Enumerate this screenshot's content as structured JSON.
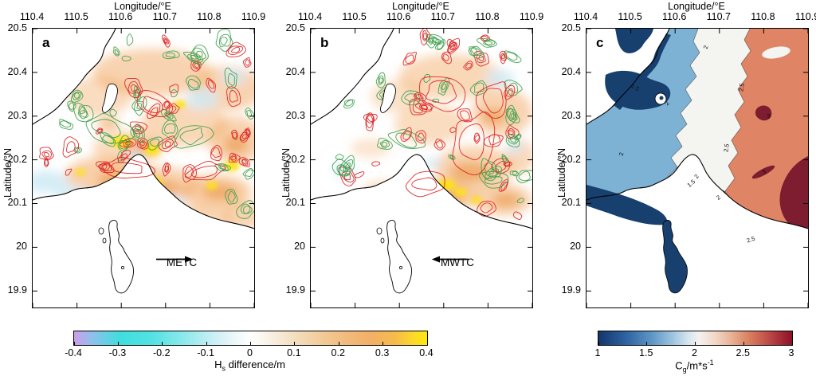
{
  "figure": {
    "panels": [
      {
        "letter": "a",
        "xlabel": "Longitude/°E",
        "ylabel": "Latitude/°N",
        "annotation": "METC",
        "arrow_direction": "right"
      },
      {
        "letter": "b",
        "xlabel": "Longitude/°E",
        "ylabel": "Latitude/°N",
        "annotation": "MWTC",
        "arrow_direction": "left"
      },
      {
        "letter": "c",
        "xlabel": "Longitude/°E",
        "ylabel": "Latitude/°N",
        "annotation": "",
        "arrow_direction": ""
      }
    ],
    "lon_ticks": [
      "110.4",
      "110.5",
      "110.6",
      "110.7",
      "110.8",
      "110.9"
    ],
    "lat_ticks": [
      "20.5",
      "20.4",
      "20.3",
      "20.2",
      "20.1",
      "20",
      "19.9"
    ],
    "colorbar_hs": {
      "label_pre": "H",
      "label_sub": "s",
      "label_post": " difference/m",
      "ticks": [
        "-0.4",
        "-0.3",
        "-0.2",
        "-0.1",
        "0",
        "0.1",
        "0.2",
        "0.3",
        "0.4"
      ]
    },
    "colorbar_cg": {
      "label_pre": "C",
      "label_sub": "g",
      "label_post": "/m*s",
      "label_sup": "-1",
      "ticks": [
        "1",
        "1.5",
        "2",
        "2.5",
        "3"
      ]
    },
    "c_contour_labels": [
      "2",
      "1.5",
      "2",
      "2.5",
      "3",
      "2",
      "2.5",
      "3",
      "2.5",
      "2",
      "1.5",
      "2"
    ]
  },
  "colors": {
    "contour_green": "#3ca04c",
    "contour_red": "#dd2222",
    "wash_orange": "#f2a862",
    "wash_deep_orange": "#ea8f3c",
    "wash_yellow": "#ffe30f",
    "wash_blue": "#cfeaf4",
    "c_navy": "#17406f",
    "c_blue": "#7db2d4",
    "c_white": "#f4f4f1",
    "c_salmon": "#df8465",
    "c_maroon": "#7e1c30",
    "coast": "#000000"
  },
  "chart_data": [
    {
      "type": "heatmap",
      "panel": "a",
      "title": "a",
      "xlabel": "Longitude/°E",
      "ylabel": "Latitude/°N",
      "xlim": [
        110.4,
        110.9
      ],
      "ylim": [
        19.9,
        20.5
      ],
      "x_ticks": [
        110.4,
        110.5,
        110.6,
        110.7,
        110.8,
        110.9
      ],
      "y_ticks": [
        20.5,
        20.4,
        20.3,
        20.2,
        20.1,
        20.0,
        19.9
      ],
      "variable": "Hs difference/m",
      "colorbar": {
        "range": [
          -0.4,
          0.4
        ],
        "ticks": [
          -0.4,
          -0.3,
          -0.2,
          -0.1,
          0,
          0.1,
          0.2,
          0.3,
          0.4
        ],
        "colormap": "purple-cyan-white-orange-yellow"
      },
      "annotation": "METC with two rightward (eastward) arrows",
      "overlay": "dense red and green contour patches over the sea; positive Hs difference (orange/yellow, up to ~0.4 m) concentrated around 20.2-20.35N, weak negative (light blue ~-0.1 m) near the west coast; black coastline with blank land"
    },
    {
      "type": "heatmap",
      "panel": "b",
      "title": "b",
      "xlabel": "Longitude/°E",
      "ylabel": "Latitude/°N",
      "xlim": [
        110.4,
        110.9
      ],
      "ylim": [
        19.9,
        20.5
      ],
      "x_ticks": [
        110.4,
        110.5,
        110.6,
        110.7,
        110.8,
        110.9
      ],
      "y_ticks": [
        20.5,
        20.4,
        20.3,
        20.2,
        20.1,
        20.0,
        19.9
      ],
      "variable": "Hs difference/m",
      "colorbar": {
        "range": [
          -0.4,
          0.4
        ],
        "ticks": [
          -0.4,
          -0.3,
          -0.2,
          -0.1,
          0,
          0.1,
          0.2,
          0.3,
          0.4
        ],
        "colormap": "purple-cyan-white-orange-yellow"
      },
      "annotation": "MWTC with two leftward (westward) arrows",
      "overlay": "red and green contour patches; weaker orange fill than panel a with a yellow hotspot near 110.7E 20.15N"
    },
    {
      "type": "filled-contour-map",
      "panel": "c",
      "title": "c",
      "xlabel": "Longitude/°E",
      "ylabel": "Latitude/°N",
      "xlim": [
        110.4,
        110.9
      ],
      "ylim": [
        19.9,
        20.5
      ],
      "x_ticks": [
        110.4,
        110.5,
        110.6,
        110.7,
        110.8,
        110.9
      ],
      "y_ticks": [
        20.5,
        20.4,
        20.3,
        20.2,
        20.1,
        20.0,
        19.9
      ],
      "variable": "Cg/m*s-1",
      "colorbar": {
        "range": [
          1,
          3
        ],
        "ticks": [
          1,
          1.5,
          2,
          2.5,
          3
        ],
        "colormap": "blue-white-red"
      },
      "contour_labels": [
        1.5,
        2,
        2.5,
        3
      ],
      "pattern": "dark blue (~1-1.5 m/s) in western bays and the southern inlet, medium blue (~1.5-2) western band, white (~2-2.5) central band, salmon (~2.5) eastern region with dark red (~3) patches at far east"
    }
  ]
}
